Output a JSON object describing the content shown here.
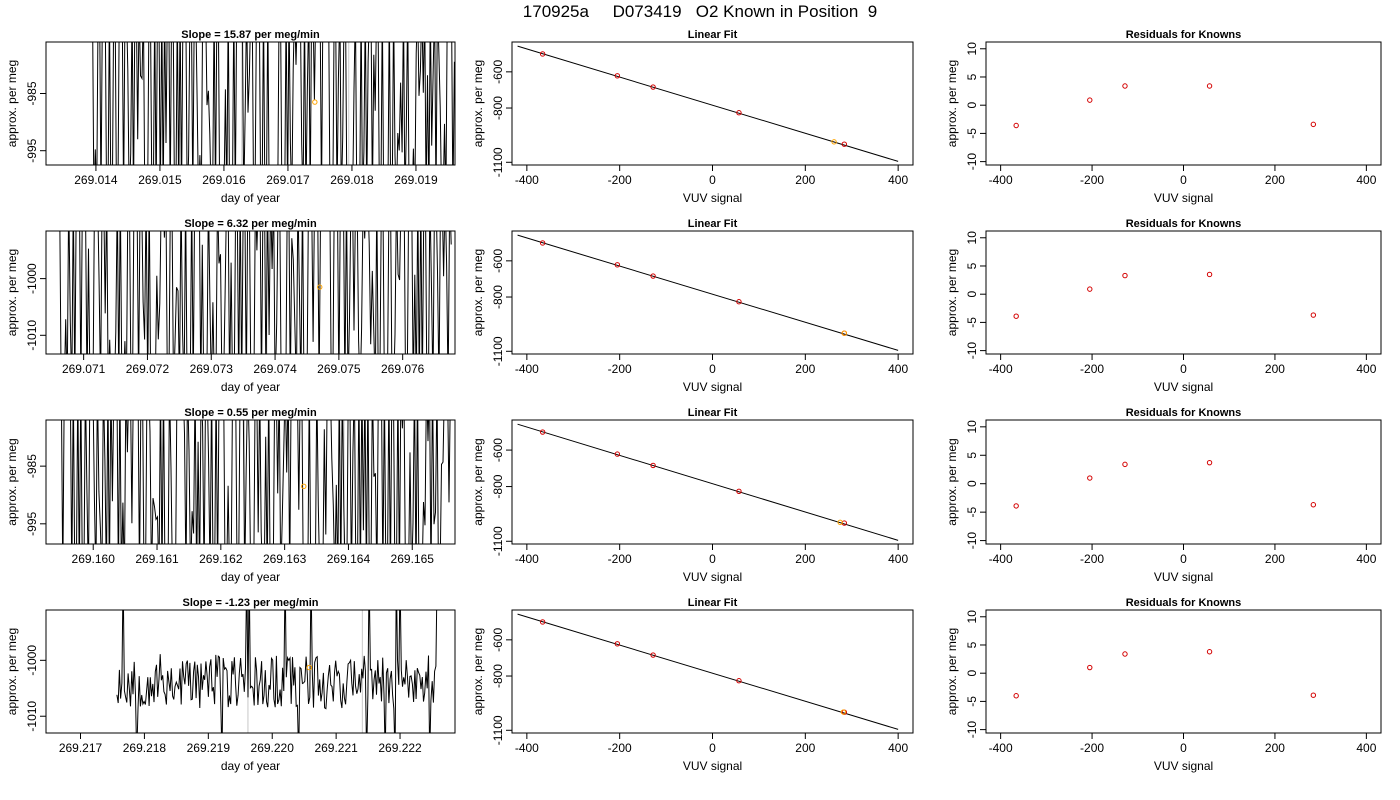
{
  "page_title": "170925a     D073419   O2 Known in Position  9",
  "chart_data": [
    {
      "type": "line",
      "title": "Slope =  15.87  per meg/min",
      "xlabel": "day of year",
      "ylabel": "approx. per meg",
      "xlim": [
        269.01322,
        269.01961
      ],
      "ylim": [
        -997.5,
        -976
      ],
      "xticks": [
        "269.014",
        "269.015",
        "269.016",
        "269.017",
        "269.018",
        "269.019"
      ],
      "yticks": [
        "-985",
        "-995"
      ],
      "x_start": 269.01388,
      "x_end": 269.0196,
      "series_note": "dense noisy trace",
      "gray_vlines": [
        269.01628,
        269.01795
      ],
      "marker": {
        "x": 269.01742,
        "y": -986.5,
        "color": "#FFA500"
      },
      "seed": 11
    },
    {
      "type": "scatter",
      "title": "Linear Fit",
      "xlabel": "VUV signal",
      "ylabel": "approx. per meg",
      "xlim": [
        -432,
        432
      ],
      "ylim": [
        -1115,
        -435
      ],
      "xticks": [
        "-400",
        "-200",
        "0",
        "200",
        "400"
      ],
      "yticks": [
        "-600",
        "-800",
        "-1100"
      ],
      "fit_line": {
        "x": [
          -420,
          400
        ],
        "y": [
          -458,
          -1095
        ]
      },
      "points_x": [
        -366,
        -205,
        -128,
        57,
        284
      ],
      "points_y": [
        -501,
        -622,
        -684,
        -826,
        -1000
      ],
      "orange_x": [
        262
      ],
      "orange_y": [
        -987
      ],
      "point_color": "#D40000"
    },
    {
      "type": "scatter",
      "title": "Residuals for Knowns",
      "xlabel": "VUV signal",
      "ylabel": "approx. per meg",
      "xlim": [
        -432,
        432
      ],
      "ylim": [
        -10.6,
        11.2
      ],
      "xticks": [
        "-400",
        "-200",
        "0",
        "200",
        "400"
      ],
      "yticks": [
        "10",
        "5",
        "0",
        "-5",
        "-10"
      ],
      "points_x": [
        -366,
        -205,
        -128,
        57,
        284
      ],
      "points_y": [
        -3.6,
        0.9,
        3.4,
        3.4,
        -3.4
      ],
      "point_color": "#D40000"
    },
    {
      "type": "line",
      "title": "Slope =  6.32  per meg/min",
      "xlabel": "day of year",
      "ylabel": "approx. per meg",
      "xlim": [
        269.07041,
        269.07682
      ],
      "ylim": [
        -1013.3,
        -991.6
      ],
      "xticks": [
        "269.071",
        "269.072",
        "269.073",
        "269.074",
        "269.075",
        "269.076"
      ],
      "yticks": [
        "-1000",
        "-1010"
      ],
      "x_start": 269.0706,
      "x_end": 269.07676,
      "series_note": "dense noisy trace",
      "gray_vlines": [
        269.07387
      ],
      "marker": {
        "x": 269.0747,
        "y": -1001.5,
        "color": "#FFA500"
      },
      "seed": 23
    },
    {
      "type": "scatter",
      "title": "Linear Fit",
      "xlabel": "VUV signal",
      "ylabel": "approx. per meg",
      "xlim": [
        -432,
        432
      ],
      "ylim": [
        -1115,
        -435
      ],
      "xticks": [
        "-400",
        "-200",
        "0",
        "200",
        "400"
      ],
      "yticks": [
        "-600",
        "-800",
        "-1100"
      ],
      "fit_line": {
        "x": [
          -420,
          400
        ],
        "y": [
          -458,
          -1095
        ]
      },
      "points_x": [
        -366,
        -205,
        -128,
        57,
        284
      ],
      "points_y": [
        -501,
        -622,
        -684,
        -826,
        -1000
      ],
      "orange_x": [
        284
      ],
      "orange_y": [
        -1000
      ],
      "point_color": "#D40000"
    },
    {
      "type": "scatter",
      "title": "Residuals for Knowns",
      "xlabel": "VUV signal",
      "ylabel": "approx. per meg",
      "xlim": [
        -432,
        432
      ],
      "ylim": [
        -10.6,
        11.2
      ],
      "xticks": [
        "-400",
        "-200",
        "0",
        "200",
        "400"
      ],
      "yticks": [
        "10",
        "5",
        "0",
        "-5",
        "-10"
      ],
      "points_x": [
        -366,
        -205,
        -128,
        57,
        284
      ],
      "points_y": [
        -3.9,
        0.9,
        3.3,
        3.5,
        -3.7
      ],
      "point_color": "#D40000"
    },
    {
      "type": "line",
      "title": "Slope =  0.55  per meg/min",
      "xlabel": "day of year",
      "ylabel": "approx. per meg",
      "xlim": [
        269.15926,
        269.16567
      ],
      "ylim": [
        -998.5,
        -977.0
      ],
      "xticks": [
        "269.160",
        "269.161",
        "269.162",
        "269.163",
        "269.164",
        "269.165"
      ],
      "yticks": [
        "-985",
        "-995"
      ],
      "x_start": 269.1595,
      "x_end": 269.1656,
      "series_note": "dense noisy trace",
      "gray_vlines": [
        269.16237,
        269.16393
      ],
      "marker": {
        "x": 269.1633,
        "y": -988.5,
        "color": "#FFA500"
      },
      "seed": 37
    },
    {
      "type": "scatter",
      "title": "Linear Fit",
      "xlabel": "VUV signal",
      "ylabel": "approx. per meg",
      "xlim": [
        -432,
        432
      ],
      "ylim": [
        -1115,
        -435
      ],
      "xticks": [
        "-400",
        "-200",
        "0",
        "200",
        "400"
      ],
      "yticks": [
        "-600",
        "-800",
        "-1100"
      ],
      "fit_line": {
        "x": [
          -420,
          400
        ],
        "y": [
          -458,
          -1095
        ]
      },
      "points_x": [
        -366,
        -205,
        -128,
        57,
        284
      ],
      "points_y": [
        -501,
        -622,
        -684,
        -826,
        -1000
      ],
      "orange_x": [
        275
      ],
      "orange_y": [
        -996
      ],
      "point_color": "#D40000"
    },
    {
      "type": "scatter",
      "title": "Residuals for Knowns",
      "xlabel": "VUV signal",
      "ylabel": "approx. per meg",
      "xlim": [
        -432,
        432
      ],
      "ylim": [
        -10.6,
        11.2
      ],
      "xticks": [
        "-400",
        "-200",
        "0",
        "200",
        "400"
      ],
      "yticks": [
        "10",
        "5",
        "0",
        "-5",
        "-10"
      ],
      "points_x": [
        -366,
        -205,
        -128,
        57,
        284
      ],
      "points_y": [
        -3.9,
        1.0,
        3.4,
        3.7,
        -3.7
      ],
      "point_color": "#D40000"
    },
    {
      "type": "line",
      "title": "Slope =  -1.23  per meg/min",
      "xlabel": "day of year",
      "ylabel": "approx. per meg",
      "xlim": [
        269.21646,
        269.22286
      ],
      "ylim": [
        -1013.0,
        -991.0
      ],
      "xticks": [
        "269.217",
        "269.218",
        "269.219",
        "269.220",
        "269.221",
        "269.222"
      ],
      "yticks": [
        "-1000",
        "-1010"
      ],
      "x_start": 269.21757,
      "x_end": 269.22258,
      "series_note": "moderate noisy trace",
      "gray_vlines": [
        269.21962,
        269.22141
      ],
      "marker": {
        "x": 269.22058,
        "y": -1001.3,
        "color": "#FFA500"
      },
      "seed": 53
    },
    {
      "type": "scatter",
      "title": "Linear Fit",
      "xlabel": "VUV signal",
      "ylabel": "approx. per meg",
      "xlim": [
        -432,
        432
      ],
      "ylim": [
        -1115,
        -435
      ],
      "xticks": [
        "-400",
        "-200",
        "0",
        "200",
        "400"
      ],
      "yticks": [
        "-600",
        "-800",
        "-1100"
      ],
      "fit_line": {
        "x": [
          -420,
          400
        ],
        "y": [
          -458,
          -1095
        ]
      },
      "points_x": [
        -366,
        -205,
        -128,
        57,
        284
      ],
      "points_y": [
        -501,
        -622,
        -684,
        -826,
        -1000
      ],
      "orange_x": [
        282
      ],
      "orange_y": [
        -999
      ],
      "point_color": "#D40000"
    },
    {
      "type": "scatter",
      "title": "Residuals for Knowns",
      "xlabel": "VUV signal",
      "ylabel": "approx. per meg",
      "xlim": [
        -432,
        432
      ],
      "ylim": [
        -10.6,
        11.2
      ],
      "xticks": [
        "-400",
        "-200",
        "0",
        "200",
        "400"
      ],
      "yticks": [
        "10",
        "5",
        "0",
        "-5",
        "-10"
      ],
      "points_x": [
        -366,
        -205,
        -128,
        57,
        284
      ],
      "points_y": [
        -4.0,
        1.0,
        3.4,
        3.8,
        -3.9
      ],
      "point_color": "#D40000"
    }
  ]
}
